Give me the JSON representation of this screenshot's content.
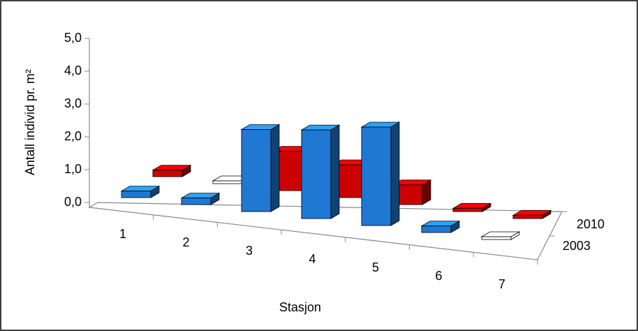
{
  "chart_data": {
    "type": "bar3d",
    "y_label": "Antall individ pr. m²",
    "x_label": "Stasjon",
    "categories": [
      "1",
      "2",
      "3",
      "4",
      "5",
      "6",
      "7"
    ],
    "series": [
      {
        "name": "2003",
        "color": "#1f78d1",
        "values": [
          0.2,
          0.2,
          2.5,
          2.7,
          3.0,
          0.2,
          0
        ]
      },
      {
        "name": "2010",
        "color": "#cc0000",
        "values": [
          0.2,
          0,
          1.2,
          1.0,
          0.6,
          0.1,
          0.1
        ]
      }
    ],
    "ylim": [
      0,
      5
    ],
    "yticks": [
      {
        "value": 0,
        "label": "0,0"
      },
      {
        "value": 1,
        "label": "1,0"
      },
      {
        "value": 2,
        "label": "2,0"
      },
      {
        "value": 3,
        "label": "3,0"
      },
      {
        "value": 4,
        "label": "4,0"
      },
      {
        "value": 5,
        "label": "5,0"
      }
    ]
  }
}
